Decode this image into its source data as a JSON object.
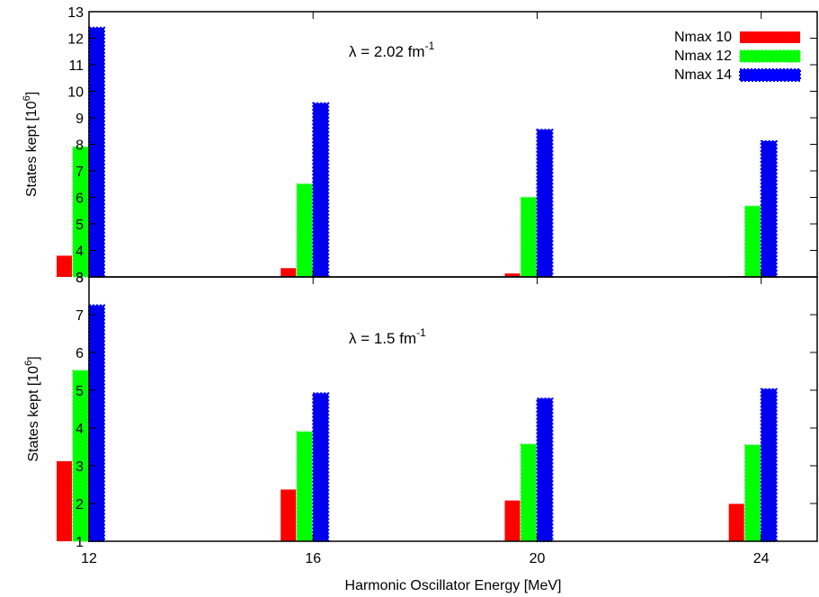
{
  "chart_data": [
    {
      "type": "bar",
      "annotation": {
        "symbol": "λ",
        "text": " = 2.02 fm",
        "sup": "-1"
      },
      "ylabel": {
        "text": "States kept [10",
        "sup": "6",
        "tail": "]"
      },
      "ylim": [
        3,
        13
      ],
      "yticks": [
        3,
        4,
        5,
        6,
        7,
        8,
        9,
        10,
        11,
        12,
        13
      ],
      "categories": [
        "12",
        "16",
        "20",
        "24"
      ],
      "series": [
        {
          "name": "Nmax 10",
          "color": "#ff0000",
          "values": [
            3.8,
            3.33,
            3.13,
            3.03
          ]
        },
        {
          "name": "Nmax 12",
          "color": "#00ff00",
          "values": [
            7.9,
            6.5,
            6.0,
            5.67
          ]
        },
        {
          "name": "Nmax 14",
          "color": "#0000ff",
          "values": [
            12.4,
            9.55,
            8.55,
            8.12
          ]
        }
      ],
      "legend": "top-right",
      "grid": false
    },
    {
      "type": "bar",
      "annotation": {
        "symbol": "λ",
        "text": " = 1.5 fm",
        "sup": "-1"
      },
      "ylabel": {
        "text": "States kept [10",
        "sup": "6",
        "tail": "]"
      },
      "xlabel": "Harmonic Oscillator Energy [MeV]",
      "ylim": [
        1,
        8
      ],
      "yticks": [
        1,
        2,
        3,
        4,
        5,
        6,
        7,
        8
      ],
      "categories": [
        "12",
        "16",
        "20",
        "24"
      ],
      "series": [
        {
          "name": "Nmax 10",
          "color": "#ff0000",
          "values": [
            3.12,
            2.37,
            2.08,
            1.99
          ]
        },
        {
          "name": "Nmax 12",
          "color": "#00ff00",
          "values": [
            5.52,
            3.9,
            3.57,
            3.55
          ]
        },
        {
          "name": "Nmax 14",
          "color": "#0000ff",
          "values": [
            7.25,
            4.92,
            4.78,
            5.03
          ]
        }
      ],
      "grid": false
    }
  ]
}
